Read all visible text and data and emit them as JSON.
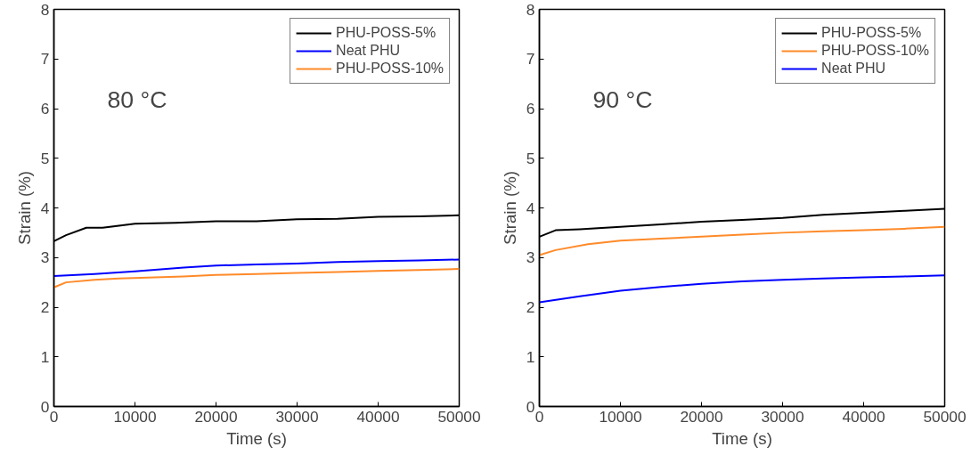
{
  "chart_data": [
    {
      "type": "line",
      "xlabel": "Time (s)",
      "ylabel": "Strain (%)",
      "annotations": [
        "80 °C"
      ],
      "xlim": [
        0,
        50000
      ],
      "ylim": [
        0,
        8
      ],
      "xticks": [
        0,
        10000,
        20000,
        30000,
        40000,
        50000
      ],
      "yticks": [
        0,
        1,
        2,
        3,
        4,
        5,
        6,
        7,
        8
      ],
      "grid": false,
      "legend": "top right",
      "series": [
        {
          "name": "PHU-POSS-5%",
          "color": "#000000",
          "x": [
            0,
            1500,
            4000,
            6000,
            10000,
            15000,
            20000,
            25000,
            30000,
            35000,
            40000,
            45000,
            50000
          ],
          "values": [
            3.33,
            3.45,
            3.6,
            3.6,
            3.68,
            3.7,
            3.73,
            3.73,
            3.77,
            3.78,
            3.82,
            3.83,
            3.85
          ]
        },
        {
          "name": "Neat PHU",
          "color": "#0000ff",
          "x": [
            0,
            5000,
            10000,
            16000,
            20000,
            25000,
            30000,
            35000,
            40000,
            45000,
            50000
          ],
          "values": [
            2.63,
            2.67,
            2.72,
            2.8,
            2.84,
            2.86,
            2.88,
            2.91,
            2.93,
            2.94,
            2.96
          ]
        },
        {
          "name": "PHU-POSS-10%",
          "color": "#ff8a29",
          "x": [
            0,
            1500,
            5000,
            8000,
            16000,
            20000,
            25000,
            30000,
            35000,
            40000,
            45000,
            50000
          ],
          "values": [
            2.4,
            2.5,
            2.55,
            2.58,
            2.62,
            2.65,
            2.67,
            2.69,
            2.71,
            2.73,
            2.75,
            2.77
          ]
        }
      ]
    },
    {
      "type": "line",
      "xlabel": "Time (s)",
      "ylabel": "Strain (%)",
      "annotations": [
        "90 °C"
      ],
      "xlim": [
        0,
        50000
      ],
      "ylim": [
        0,
        8
      ],
      "xticks": [
        0,
        10000,
        20000,
        30000,
        40000,
        50000
      ],
      "yticks": [
        0,
        1,
        2,
        3,
        4,
        5,
        6,
        7,
        8
      ],
      "grid": false,
      "legend": "top right",
      "series": [
        {
          "name": "PHU-POSS-5%",
          "color": "#000000",
          "x": [
            0,
            2000,
            5000,
            10000,
            15000,
            20000,
            25000,
            30000,
            35000,
            40000,
            45000,
            50000
          ],
          "values": [
            3.42,
            3.55,
            3.57,
            3.62,
            3.67,
            3.72,
            3.76,
            3.8,
            3.86,
            3.9,
            3.94,
            3.98
          ]
        },
        {
          "name": "PHU-POSS-10%",
          "color": "#ff8a29",
          "x": [
            0,
            2000,
            6000,
            10000,
            15000,
            20000,
            25000,
            30000,
            35000,
            40000,
            45000,
            50000
          ],
          "values": [
            3.05,
            3.15,
            3.27,
            3.34,
            3.38,
            3.42,
            3.46,
            3.5,
            3.53,
            3.55,
            3.58,
            3.62
          ]
        },
        {
          "name": "Neat PHU",
          "color": "#0000ff",
          "x": [
            0,
            5000,
            10000,
            15000,
            20000,
            25000,
            30000,
            35000,
            40000,
            45000,
            50000
          ],
          "values": [
            2.1,
            2.22,
            2.33,
            2.41,
            2.47,
            2.52,
            2.55,
            2.58,
            2.6,
            2.62,
            2.64
          ]
        }
      ]
    }
  ]
}
